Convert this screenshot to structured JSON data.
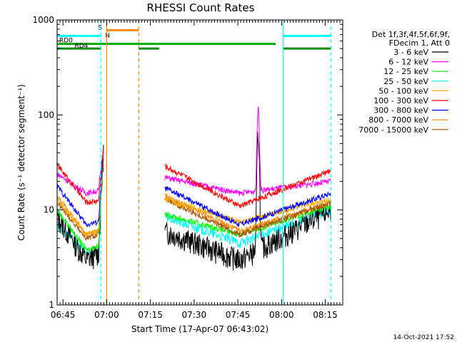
{
  "chart_data": {
    "type": "line",
    "title": "RHESSI Count Rates",
    "xlabel": "Start Time (17-Apr-07 06:43:02)",
    "ylabel": "Count Rate (s⁻¹ detector segment⁻¹)",
    "yscale": "log",
    "ylim": [
      1,
      1000
    ],
    "xlim_minutes": [
      0,
      98
    ],
    "x_unit": "minutes since 06:43:02",
    "x_ticks": [
      {
        "label": "06:45",
        "min": 2
      },
      {
        "label": "07:00",
        "min": 17
      },
      {
        "label": "07:15",
        "min": 32
      },
      {
        "label": "07:30",
        "min": 47
      },
      {
        "label": "07:45",
        "min": 62
      },
      {
        "label": "08:00",
        "min": 77
      },
      {
        "label": "08:15",
        "min": 92
      }
    ],
    "y_ticks": [
      {
        "label": "1",
        "value": 1
      },
      {
        "label": "10",
        "value": 10
      },
      {
        "label": "100",
        "value": 100
      },
      {
        "label": "1000",
        "value": 1000
      }
    ],
    "legend_header": [
      "Det 1f,3f,4f,5f,6f,9f,",
      "FDecim 1, Att 0"
    ],
    "legend_position": "top-right",
    "timestamp": "14-Oct-2021 17:52",
    "gap_minutes": [
      16,
      37
    ],
    "spike_center_minutes": 69,
    "series": [
      {
        "name": "3 - 6 keV",
        "color": "#000000",
        "y_start": 8.5,
        "y_min": 3.0,
        "y_pre": 3.5,
        "y_post": 6.0,
        "y_trough": 3.0,
        "y_end": 10,
        "spike": 65
      },
      {
        "name": "6 - 12 keV",
        "color": "#ff00ff",
        "y_start": 24,
        "y_min": 15,
        "y_pre": 16,
        "y_post": 22,
        "y_trough": 15,
        "y_end": 20,
        "spike": 120
      },
      {
        "name": "12 - 25 keV",
        "color": "#00ff00",
        "y_start": 10,
        "y_min": 3.8,
        "y_pre": 4.2,
        "y_post": 9,
        "y_trough": 5.5,
        "y_end": 11,
        "spike": 0
      },
      {
        "name": "25 - 50 keV",
        "color": "#00ffff",
        "y_start": 7,
        "y_min": 3.5,
        "y_pre": 3.8,
        "y_post": 8.5,
        "y_trough": 4.5,
        "y_end": 10,
        "spike": 0
      },
      {
        "name": "50 - 100 keV",
        "color": "#ffaa00",
        "y_start": 13,
        "y_min": 5.5,
        "y_pre": 6.0,
        "y_post": 13,
        "y_trough": 7.5,
        "y_end": 13,
        "spike": 0
      },
      {
        "name": "100 - 300 keV",
        "color": "#ff0000",
        "y_start": 30,
        "y_min": 12,
        "y_pre": 12.5,
        "y_post": 29,
        "y_trough": 11,
        "y_end": 26,
        "spike": 0
      },
      {
        "name": "300 - 800 keV",
        "color": "#0000ff",
        "y_start": 18,
        "y_min": 7,
        "y_pre": 7.5,
        "y_post": 17,
        "y_trough": 7,
        "y_end": 15,
        "spike": 0
      },
      {
        "name": "800 - 7000 keV",
        "color": "#ff8800",
        "y_start": 14,
        "y_min": 5.5,
        "y_pre": 6,
        "y_post": 14,
        "y_trough": 6,
        "y_end": 12,
        "spike": 0
      },
      {
        "name": "7000 - 15000 keV",
        "color": "#aa5500",
        "y_start": 12,
        "y_min": 5,
        "y_pre": 5.5,
        "y_post": 13,
        "y_trough": 5.5,
        "y_end": 12,
        "spike": 0
      }
    ],
    "flag_bars": [
      {
        "label": "S",
        "color": "#ff8800",
        "x0_min": 17,
        "x1_min": 28,
        "y_level": 780
      },
      {
        "label": "N",
        "color": "#00ffff",
        "x0_min": 0,
        "x1_min": 15,
        "y_level": 680
      },
      {
        "label": "",
        "color": "#00ffff",
        "x0_min": 77.5,
        "x1_min": 94,
        "y_level": 680
      },
      {
        "label": "RD0",
        "color": "#00aa00",
        "x0_min": 0,
        "x1_min": 38,
        "y_level": 560
      },
      {
        "label": "",
        "color": "#00aa00",
        "x0_min": 38,
        "x1_min": 75,
        "y_level": 560
      },
      {
        "label": "RD4",
        "color": "#008800",
        "x0_min": 0,
        "x1_min": 15,
        "y_level": 500
      },
      {
        "label": "",
        "color": "#008800",
        "x0_min": 28,
        "x1_min": 35,
        "y_level": 500
      },
      {
        "label": "",
        "color": "#008800",
        "x0_min": 77.5,
        "x1_min": 94,
        "y_level": 500
      }
    ],
    "vlines": [
      {
        "x_min": 0,
        "color": "#00ffff",
        "style": "solid"
      },
      {
        "x_min": 15,
        "color": "#00ffff",
        "style": "dashed"
      },
      {
        "x_min": 17,
        "color": "#ff8800",
        "style": "solid"
      },
      {
        "x_min": 28,
        "color": "#ff8800",
        "style": "dashed"
      },
      {
        "x_min": 77.5,
        "color": "#00ffff",
        "style": "solid"
      },
      {
        "x_min": 94,
        "color": "#00ffff",
        "style": "dashed"
      }
    ]
  }
}
